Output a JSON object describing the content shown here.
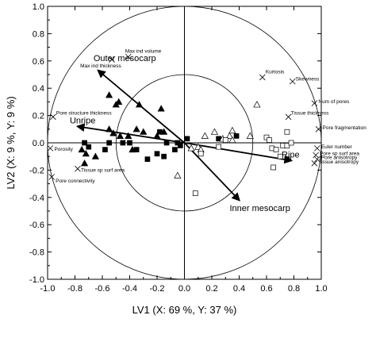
{
  "chart_data": {
    "type": "scatter",
    "xlabel": "LV1 (X: 69 %, Y: 37 %)",
    "ylabel": "LV2 (X: 9 %, Y: 9 %)",
    "xlim": [
      -1.0,
      1.0
    ],
    "ylim": [
      -1.0,
      1.0
    ],
    "xticks": [
      "-1.0",
      "-0.8",
      "-0.6",
      "-0.4",
      "-0.2",
      "0.0",
      "0.2",
      "0.4",
      "0.6",
      "0.8",
      "1.0"
    ],
    "yticks": [
      "-1.0",
      "-0.8",
      "-0.6",
      "-0.4",
      "-0.2",
      "0.0",
      "0.2",
      "0.4",
      "0.6",
      "0.8",
      "1.0"
    ],
    "circles": [
      1.0,
      0.5
    ],
    "grid": false,
    "loadings": [
      {
        "label": "Max ind volume",
        "x": -0.41,
        "y": 0.63
      },
      {
        "label": "Max ind thickness",
        "x": -0.53,
        "y": 0.61
      },
      {
        "label": "Kurtosis",
        "x": 0.57,
        "y": 0.48
      },
      {
        "label": "Skewness",
        "x": 0.79,
        "y": 0.45
      },
      {
        "label": "Num of pores",
        "x": 0.95,
        "y": 0.29
      },
      {
        "label": "Tissue thickness",
        "x": 0.76,
        "y": 0.19
      },
      {
        "label": "Pore structure thickness",
        "x": -0.96,
        "y": 0.19
      },
      {
        "label": "Pore fragmentation",
        "x": 0.98,
        "y": 0.1
      },
      {
        "label": "Euler number",
        "x": 0.97,
        "y": -0.04
      },
      {
        "label": "Pore sp surf area",
        "x": 0.96,
        "y": -0.09
      },
      {
        "label": "Pore anisotropy",
        "x": 0.97,
        "y": -0.12
      },
      {
        "label": "Tissue anisotropy",
        "x": 0.95,
        "y": -0.15
      },
      {
        "label": "Porosity",
        "x": -0.98,
        "y": -0.04
      },
      {
        "label": "Tissue sp surf area",
        "x": -0.78,
        "y": -0.19
      },
      {
        "label": "Pore connectivity",
        "x": -0.97,
        "y": -0.25
      }
    ],
    "arrows": [
      {
        "label": "Outer mesocarp",
        "x": -0.63,
        "y": 0.53
      },
      {
        "label": "Unripe",
        "x": -0.78,
        "y": 0.12
      },
      {
        "label": "Ripe",
        "x": 0.78,
        "y": -0.13
      },
      {
        "label": "Inner mesocarp",
        "x": 0.4,
        "y": -0.42
      }
    ],
    "series": [
      {
        "marker": "triangle-filled",
        "points": [
          [
            -0.55,
            0.35
          ],
          [
            -0.48,
            0.3
          ],
          [
            -0.5,
            0.28
          ],
          [
            -0.33,
            0.28
          ],
          [
            -0.17,
            0.25
          ],
          [
            -0.55,
            0.1
          ],
          [
            -0.52,
            0.07
          ],
          [
            -0.47,
            0.05
          ],
          [
            -0.41,
            0.05
          ],
          [
            -0.35,
            0.1
          ],
          [
            -0.3,
            0.08
          ],
          [
            -0.2,
            0.05
          ],
          [
            -0.15,
            0.08
          ],
          [
            -0.75,
            -0.05
          ],
          [
            -0.72,
            -0.08
          ],
          [
            -0.73,
            -0.15
          ],
          [
            -0.65,
            -0.1
          ],
          [
            -0.38,
            -0.05
          ]
        ]
      },
      {
        "marker": "square-filled",
        "points": [
          [
            -0.73,
            0.0
          ],
          [
            -0.7,
            -0.03
          ],
          [
            -0.58,
            -0.05
          ],
          [
            -0.55,
            0.0
          ],
          [
            -0.45,
            0.0
          ],
          [
            -0.4,
            0.0
          ],
          [
            -0.35,
            -0.05
          ],
          [
            -0.27,
            -0.12
          ],
          [
            -0.2,
            -0.08
          ],
          [
            -0.18,
            0.08
          ],
          [
            -0.15,
            -0.1
          ],
          [
            -0.13,
            0.0
          ],
          [
            -0.07,
            -0.05
          ],
          [
            -0.05,
            0.0
          ],
          [
            -0.03,
            -0.02
          ],
          [
            0.02,
            0.03
          ],
          [
            0.25,
            0.03
          ],
          [
            0.38,
            0.05
          ],
          [
            0.75,
            -0.12
          ]
        ]
      },
      {
        "marker": "triangle-open",
        "points": [
          [
            0.05,
            -0.04
          ],
          [
            0.1,
            -0.03
          ],
          [
            0.12,
            -0.05
          ],
          [
            0.15,
            0.05
          ],
          [
            0.22,
            0.08
          ],
          [
            0.28,
            0.03
          ],
          [
            0.33,
            0.05
          ],
          [
            0.35,
            0.09
          ],
          [
            0.48,
            0.05
          ],
          [
            0.53,
            0.28
          ],
          [
            -0.05,
            -0.24
          ],
          [
            0.35,
            0.02
          ]
        ]
      },
      {
        "marker": "square-open",
        "points": [
          [
            0.12,
            -0.08
          ],
          [
            0.25,
            -0.03
          ],
          [
            0.3,
            0.02
          ],
          [
            0.6,
            0.04
          ],
          [
            0.62,
            0.02
          ],
          [
            0.64,
            -0.04
          ],
          [
            0.67,
            -0.05
          ],
          [
            0.72,
            -0.02
          ],
          [
            0.75,
            0.08
          ],
          [
            0.75,
            -0.02
          ],
          [
            0.78,
            0.0
          ],
          [
            0.7,
            -0.1
          ],
          [
            0.65,
            -0.18
          ],
          [
            0.08,
            -0.37
          ]
        ]
      }
    ]
  }
}
